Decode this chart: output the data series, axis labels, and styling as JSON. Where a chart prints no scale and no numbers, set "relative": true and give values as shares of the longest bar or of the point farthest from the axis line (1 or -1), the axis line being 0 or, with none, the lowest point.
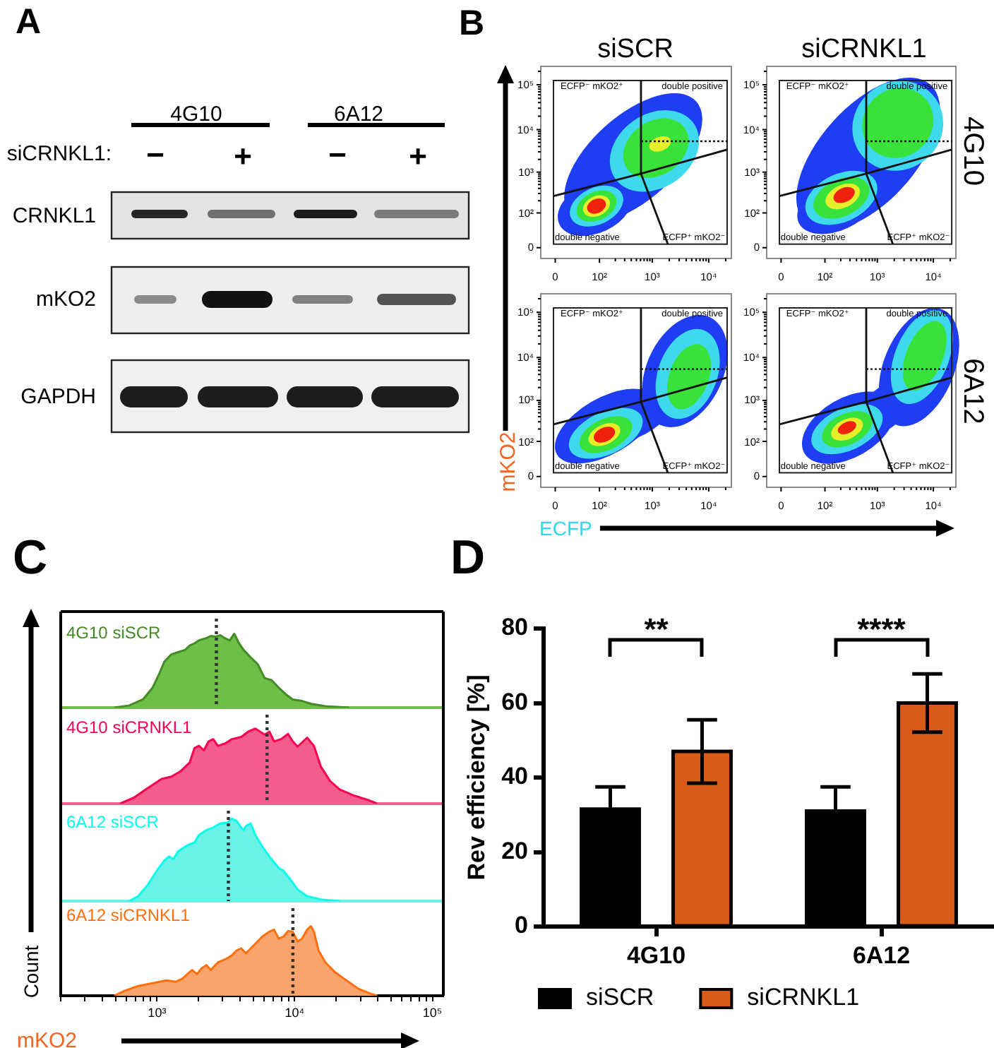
{
  "chart_data": [
    {
      "type": "other",
      "title": "A",
      "annotations": [
        "4G10",
        "6A12",
        "siCRNKL1:",
        "−",
        "+",
        "−",
        "+",
        "CRNKL1",
        "mKO2",
        "GAPDH"
      ]
    },
    {
      "type": "other",
      "title": "siSCR",
      "annotations": [
        "B",
        "10⁵",
        "10⁴",
        "10³",
        "10²",
        "0",
        "0",
        "10²",
        "10³",
        "10⁴",
        "ECFP⁻ mKO2⁺",
        "double positive",
        "double negative",
        "ECFP⁺ mKO2⁻"
      ]
    },
    {
      "type": "other",
      "title": "siCRNKL1",
      "y2label": "4G10",
      "annotations": [
        "10⁵",
        "10⁴",
        "10³",
        "10²",
        "0",
        "0",
        "10²",
        "10³",
        "10⁴",
        "ECFP⁻ mKO2⁺",
        "double positive",
        "double negative",
        "ECFP⁺ mKO2⁻"
      ]
    },
    {
      "type": "other",
      "xlabel": "ECFP",
      "ylabel": "mKO2",
      "annotations": [
        "10⁵",
        "10⁴",
        "10³",
        "10²",
        "0",
        "0",
        "10²",
        "10³",
        "10⁴",
        "ECFP⁻ mKO2⁺",
        "double positive",
        "double negative",
        "ECFP⁺ mKO2⁻"
      ]
    },
    {
      "type": "other",
      "y2label": "6A12",
      "annotations": [
        "10⁵",
        "10⁴",
        "10³",
        "10²",
        "0",
        "0",
        "10²",
        "10³",
        "10⁴",
        "ECFP⁻ mKO2⁺",
        "double positive",
        "double negative",
        "ECFP⁺ mKO2⁻"
      ]
    },
    {
      "type": "area",
      "title": "C",
      "relative": true,
      "tick_labels": false,
      "log": "x",
      "xlim": [
        200,
        120000
      ],
      "x": [
        490,
        630,
        790,
        930,
        1040,
        1130,
        1270,
        1420,
        1600,
        1730,
        1870,
        2020,
        2280,
        2460,
        2660,
        2880,
        3110,
        3370,
        3640,
        3940,
        4260,
        4790,
        5380,
        6050,
        6810,
        7660,
        8610,
        9680,
        11300,
        13200,
        16700,
        24800
      ],
      "series": [
        {
          "name": "4G10 siSCR",
          "color": "#6dbf47",
          "values": [
            0,
            0.03,
            0.11,
            0.27,
            0.46,
            0.62,
            0.72,
            0.75,
            0.78,
            0.84,
            0.87,
            0.91,
            0.94,
            0.97,
            0.96,
            0.98,
            0.94,
            0.91,
            1,
            0.87,
            0.78,
            0.68,
            0.59,
            0.4,
            0.37,
            0.27,
            0.18,
            0.11,
            0.09,
            0.05,
            0.02,
            0
          ]
        }
      ],
      "ref_lines": [
        {
          "axis": "x",
          "value": 2700,
          "color": "#333333",
          "line_style": "dotted"
        }
      ]
    },
    {
      "type": "area",
      "relative": true,
      "tick_labels": false,
      "log": "x",
      "xlim": [
        200,
        120000
      ],
      "x": [
        540,
        680,
        860,
        1080,
        1270,
        1480,
        1730,
        1870,
        2020,
        2190,
        2370,
        2560,
        2770,
        3110,
        3500,
        4090,
        4600,
        5180,
        5600,
        6050,
        6550,
        7080,
        7960,
        8950,
        9680,
        10500,
        12300,
        13800,
        15500,
        18100,
        21200,
        26800,
        33900,
        39700
      ],
      "series": [
        {
          "name": "4G10 siCRNKL1",
          "color": "#f45c8d",
          "values": [
            0,
            0.08,
            0.21,
            0.33,
            0.36,
            0.43,
            0.55,
            0.74,
            0.77,
            0.71,
            0.83,
            0.86,
            0.77,
            0.8,
            0.86,
            0.89,
            0.96,
            1,
            0.96,
            0.92,
            0.96,
            0.83,
            0.86,
            0.93,
            0.83,
            0.76,
            0.88,
            0.77,
            0.49,
            0.3,
            0.19,
            0.11,
            0.05,
            0
          ]
        }
      ],
      "ref_lines": [
        {
          "axis": "x",
          "value": 6300,
          "color": "#333333",
          "line_style": "dotted"
        }
      ]
    },
    {
      "type": "area",
      "relative": true,
      "tick_labels": false,
      "log": "x",
      "xlim": [
        200,
        120000
      ],
      "x": [
        630,
        730,
        860,
        1000,
        1130,
        1220,
        1320,
        1420,
        1600,
        1730,
        1870,
        2020,
        2280,
        2560,
        2880,
        3240,
        3500,
        3780,
        4090,
        4260,
        4430,
        4790,
        5180,
        5820,
        6550,
        7660,
        8280,
        9310,
        10500,
        12300,
        15500,
        21200
      ],
      "series": [
        {
          "name": "6A12 siSCR",
          "color": "#6af2e6",
          "values": [
            0,
            0.06,
            0.2,
            0.37,
            0.49,
            0.54,
            0.51,
            0.6,
            0.66,
            0.69,
            0.71,
            0.8,
            0.86,
            0.89,
            0.94,
            0.95,
            1,
            0.97,
            0.89,
            0.86,
            0.91,
            0.94,
            0.8,
            0.66,
            0.54,
            0.4,
            0.37,
            0.26,
            0.14,
            0.06,
            0.02,
            0
          ]
        }
      ],
      "ref_lines": [
        {
          "axis": "x",
          "value": 3300,
          "color": "#333333",
          "line_style": "dotted"
        }
      ]
    },
    {
      "type": "area",
      "relative": true,
      "xlabel": "mKO2",
      "ylabel": "Count",
      "log": "x",
      "xlim": [
        200,
        120000
      ],
      "xticks": [
        {
          "value": 200,
          "label": null
        },
        {
          "value": 300,
          "label": null
        },
        {
          "value": 400,
          "label": null
        },
        {
          "value": 500,
          "label": null
        },
        {
          "value": 600,
          "label": null
        },
        {
          "value": 700,
          "label": null
        },
        {
          "value": 800,
          "label": null
        },
        {
          "value": 900,
          "label": null
        },
        {
          "value": 1000,
          "label": "10³"
        },
        {
          "value": 2000,
          "label": null
        },
        {
          "value": 3000,
          "label": null
        },
        {
          "value": 4000,
          "label": null
        },
        {
          "value": 5000,
          "label": null
        },
        {
          "value": 6000,
          "label": null
        },
        {
          "value": 7000,
          "label": null
        },
        {
          "value": 8000,
          "label": null
        },
        {
          "value": 9000,
          "label": null
        },
        {
          "value": 10000,
          "label": "10⁴"
        },
        {
          "value": 20000,
          "label": null
        },
        {
          "value": 30000,
          "label": null
        },
        {
          "value": 40000,
          "label": null
        },
        {
          "value": 50000,
          "label": null
        },
        {
          "value": 60000,
          "label": null
        },
        {
          "value": 70000,
          "label": null
        },
        {
          "value": 80000,
          "label": null
        },
        {
          "value": 90000,
          "label": null
        },
        {
          "value": 100000,
          "label": "10⁵"
        }
      ],
      "x": [
        490,
        580,
        730,
        930,
        1170,
        1370,
        1540,
        1660,
        1800,
        1950,
        2100,
        2280,
        2460,
        2770,
        3110,
        3500,
        3780,
        4090,
        4430,
        4790,
        5380,
        5820,
        6550,
        7080,
        7660,
        8280,
        8950,
        9680,
        10500,
        11300,
        12300,
        13100,
        13800,
        14900,
        16700,
        19600,
        23000,
        29000,
        36700,
        39700
      ],
      "series": [
        {
          "name": "6A12 siCRNKL1",
          "color": "#f8a46c",
          "values": [
            0,
            0.07,
            0.14,
            0.18,
            0.22,
            0.2,
            0.25,
            0.31,
            0.37,
            0.31,
            0.39,
            0.44,
            0.37,
            0.48,
            0.52,
            0.58,
            0.65,
            0.68,
            0.61,
            0.68,
            0.78,
            0.85,
            0.92,
            0.95,
            0.82,
            0.85,
            0.93,
            0.92,
            0.78,
            0.82,
            0.95,
            1,
            0.92,
            0.65,
            0.48,
            0.34,
            0.24,
            0.1,
            0.02,
            0
          ]
        }
      ],
      "ref_lines": [
        {
          "axis": "x",
          "value": 9700,
          "color": "#333333",
          "line_style": "dotted"
        }
      ]
    },
    {
      "type": "bar",
      "title": "D",
      "ylabel": "Rev efficiency [%]",
      "categories": [
        "4G10",
        "6A12"
      ],
      "series": [
        {
          "name": "siSCR",
          "color": "#000000",
          "values": [
            31.5,
            31
          ],
          "errors": [
            6,
            6.5
          ]
        },
        {
          "name": "siCRNKL1",
          "color": "#d95b17",
          "values": [
            47,
            60
          ],
          "errors": [
            8.5,
            7.8
          ]
        }
      ],
      "ylim": [
        0,
        80
      ],
      "yticks": [
        0,
        20,
        40,
        60,
        80
      ],
      "legend": "bottom",
      "annotations": [
        "**",
        "****"
      ]
    }
  ]
}
